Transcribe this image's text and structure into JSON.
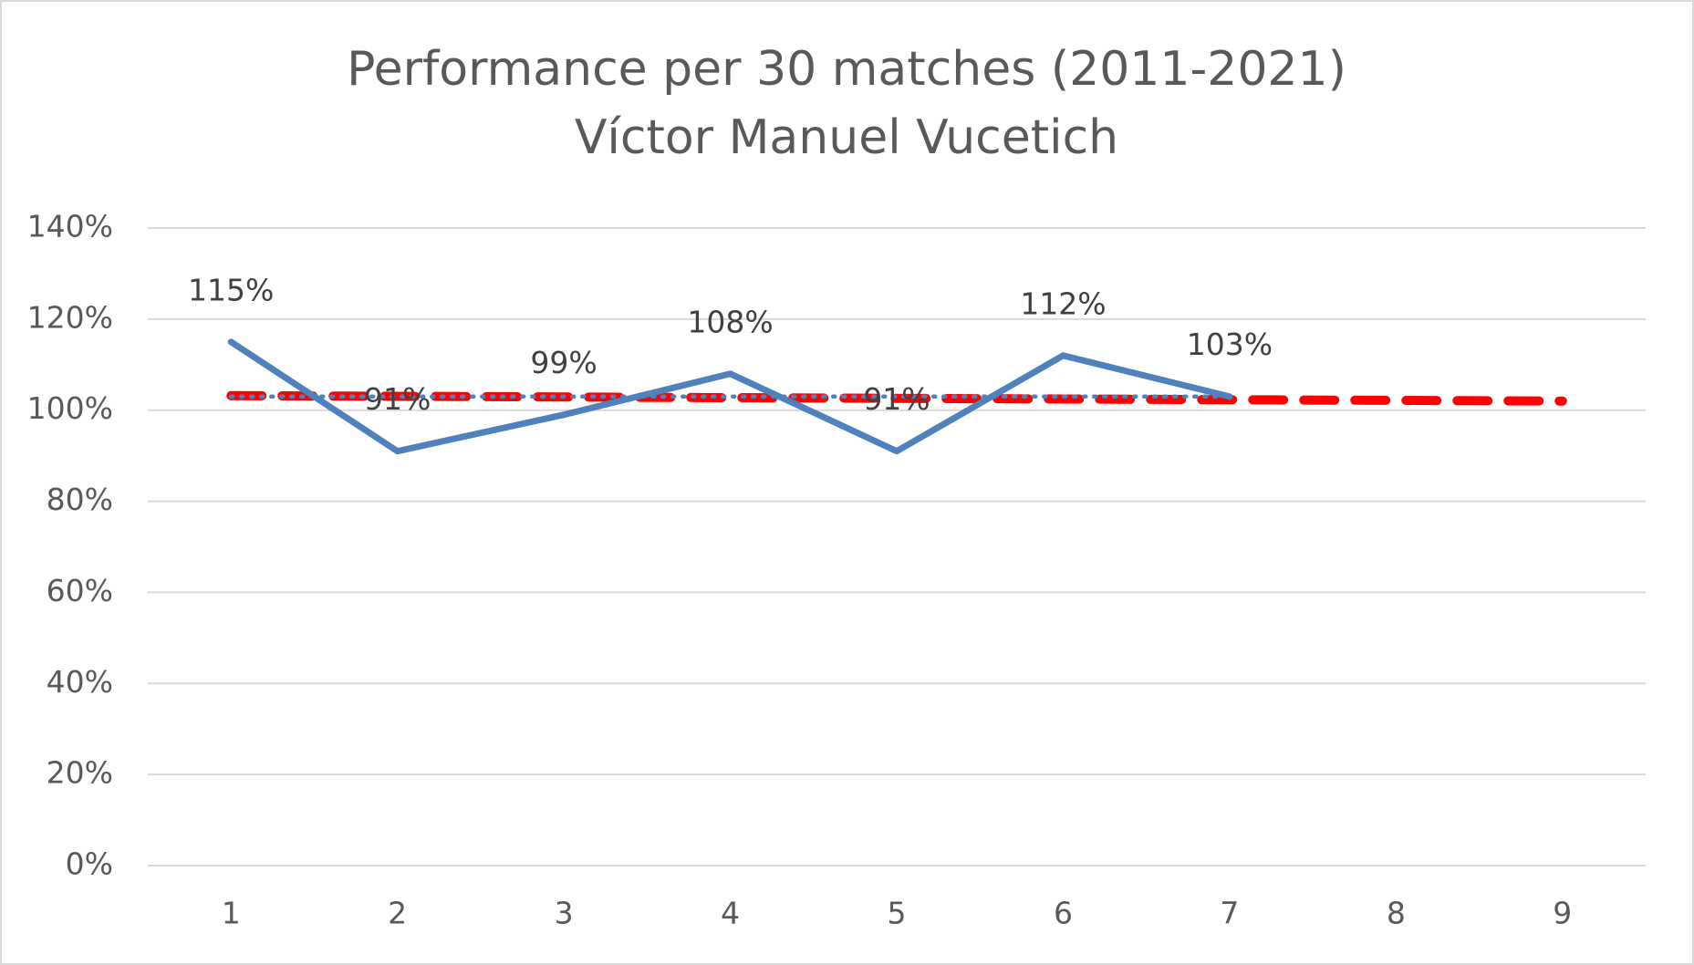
{
  "chart_data": {
    "type": "line",
    "title": "Performance per 30 matches (2011-2021)",
    "subtitle": "Víctor Manuel Vucetich",
    "categories": [
      "1",
      "2",
      "3",
      "4",
      "5",
      "6",
      "7",
      "8",
      "9"
    ],
    "series": [
      {
        "color": "#4f81bd",
        "line_style": "solid",
        "values": [
          115,
          91,
          99,
          108,
          91,
          112,
          103,
          null,
          null
        ],
        "value_labels": [
          "115%",
          "91%",
          "99%",
          "108%",
          "91%",
          "112%",
          "103%",
          null,
          null
        ]
      },
      {
        "color": "#4f81bd",
        "line_style": "dotted",
        "values": [
          103,
          103,
          103,
          103,
          103,
          103,
          103,
          null,
          null
        ]
      },
      {
        "color": "#ff0000",
        "line_style": "dashed",
        "values": [
          103.2,
          103.05,
          102.9,
          102.75,
          102.6,
          102.45,
          102.3,
          102.15,
          102.0
        ]
      }
    ],
    "ylim": [
      0,
      140
    ],
    "yticks": [
      {
        "value": 0,
        "label": "0%"
      },
      {
        "value": 20,
        "label": "20%"
      },
      {
        "value": 40,
        "label": "40%"
      },
      {
        "value": 60,
        "label": "60%"
      },
      {
        "value": 80,
        "label": "80%"
      },
      {
        "value": 100,
        "label": "100%"
      },
      {
        "value": 120,
        "label": "120%"
      },
      {
        "value": 140,
        "label": "140%"
      }
    ],
    "grid": true
  }
}
